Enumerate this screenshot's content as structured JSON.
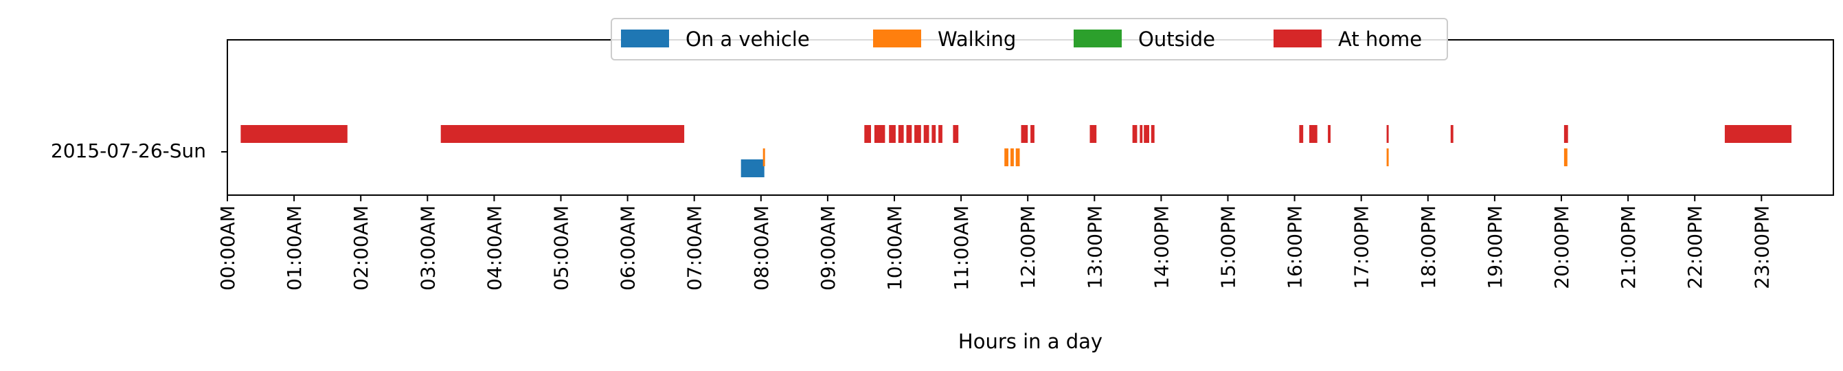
{
  "chart_data": {
    "type": "timeline",
    "title": "",
    "xlabel": "Hours in a day",
    "ylabel": "",
    "xlim": [
      0,
      24
    ],
    "row_label": "2015-07-26-Sun",
    "ticks": [
      "00:00AM",
      "01:00AM",
      "02:00AM",
      "03:00AM",
      "04:00AM",
      "05:00AM",
      "06:00AM",
      "07:00AM",
      "08:00AM",
      "09:00AM",
      "10:00AM",
      "11:00AM",
      "12:00PM",
      "13:00PM",
      "14:00PM",
      "15:00PM",
      "16:00PM",
      "17:00PM",
      "18:00PM",
      "19:00PM",
      "20:00PM",
      "21:00PM",
      "22:00PM",
      "23:00PM"
    ],
    "legend_position": "top-center",
    "series": [
      {
        "name": "On a vehicle",
        "color": "#1f77b4",
        "lane": "bottom",
        "intervals": [
          [
            7.7,
            8.05
          ]
        ]
      },
      {
        "name": "Walking",
        "color": "#ff7f0e",
        "lane": "middle",
        "intervals": [
          [
            8.03,
            8.06
          ],
          [
            11.65,
            11.71
          ],
          [
            11.74,
            11.79
          ],
          [
            11.82,
            11.88
          ],
          [
            17.38,
            17.41
          ],
          [
            20.04,
            20.09
          ]
        ]
      },
      {
        "name": "Outside",
        "color": "#2ca02c",
        "lane": "top",
        "intervals": []
      },
      {
        "name": "At home",
        "color": "#d62728",
        "lane": "top",
        "intervals": [
          [
            0.2,
            1.8
          ],
          [
            3.2,
            6.85
          ],
          [
            9.55,
            9.65
          ],
          [
            9.7,
            9.86
          ],
          [
            9.92,
            10.02
          ],
          [
            10.06,
            10.14
          ],
          [
            10.18,
            10.26
          ],
          [
            10.3,
            10.4
          ],
          [
            10.44,
            10.52
          ],
          [
            10.56,
            10.62
          ],
          [
            10.66,
            10.72
          ],
          [
            10.88,
            10.96
          ],
          [
            11.9,
            12.0
          ],
          [
            12.04,
            12.1
          ],
          [
            12.93,
            13.03
          ],
          [
            13.57,
            13.64
          ],
          [
            13.68,
            13.72
          ],
          [
            13.74,
            13.82
          ],
          [
            13.85,
            13.9
          ],
          [
            16.07,
            16.13
          ],
          [
            16.22,
            16.34
          ],
          [
            16.5,
            16.54
          ],
          [
            17.38,
            17.41
          ],
          [
            18.34,
            18.38
          ],
          [
            20.04,
            20.1
          ],
          [
            22.45,
            23.45
          ]
        ]
      }
    ]
  }
}
